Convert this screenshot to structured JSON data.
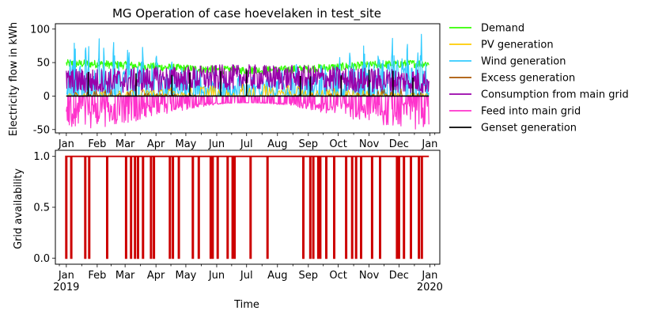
{
  "chart_data": [
    {
      "type": "line",
      "title": "MG Operation of case hoevelaken in test_site",
      "xlabel": "",
      "ylabel": "Electricity flow in kWh",
      "ylim": [
        -55,
        108
      ],
      "yticks": [
        -50,
        0,
        50,
        100
      ],
      "x_range": [
        "2018-12-21",
        "2020-01-11"
      ],
      "x_tick_labels": [
        "Jan",
        "Feb",
        "Mar",
        "Apr",
        "May",
        "Jun",
        "Jul",
        "Aug",
        "Sep",
        "Oct",
        "Nov",
        "Dec",
        "Jan"
      ],
      "legend_placement": "outside-right",
      "series": [
        {
          "name": "Demand",
          "color": "#33ff00",
          "typical_range": [
            30,
            57
          ],
          "peak_months": [
            "Jan",
            "Nov",
            "Dec"
          ]
        },
        {
          "name": "PV generation",
          "color": "#ffcc00",
          "typical_range": [
            0,
            18
          ],
          "peak_months": [
            "May",
            "Jun",
            "Jul"
          ]
        },
        {
          "name": "Wind generation",
          "color": "#33ccff",
          "typical_range": [
            0,
            100
          ],
          "peak_months": [
            "Jan",
            "Feb",
            "Sep",
            "Nov",
            "Dec"
          ]
        },
        {
          "name": "Excess generation",
          "color": "#aa5500",
          "typical_range": [
            0,
            12
          ],
          "peak_months": [
            "Jan",
            "Dec"
          ]
        },
        {
          "name": "Consumption from main grid",
          "color": "#9900aa",
          "typical_range": [
            5,
            50
          ],
          "peak_months": [
            "Mar",
            "Jun",
            "Oct"
          ]
        },
        {
          "name": "Feed into main grid",
          "color": "#ff33cc",
          "typical_range": [
            -50,
            0
          ],
          "peak_months": [
            "Jan",
            "Feb",
            "Mar",
            "Apr",
            "Sep",
            "Nov",
            "Dec"
          ]
        },
        {
          "name": "Genset generation",
          "color": "#000000",
          "typical_range": [
            0,
            40
          ],
          "spikes_at": [
            "2019-01-23",
            "2019-03-12",
            "2019-04-17",
            "2019-05-05",
            "2019-06-05",
            "2019-07-01",
            "2019-08-24",
            "2019-09-03",
            "2019-10-04",
            "2019-11-01",
            "2019-11-25",
            "2019-12-15"
          ]
        }
      ]
    },
    {
      "type": "line",
      "title": "",
      "xlabel": "Time",
      "ylabel": "Grid availability",
      "ylim": [
        -0.06,
        1.06
      ],
      "yticks": [
        0.0,
        0.5,
        1.0
      ],
      "ytick_labels": [
        "0.0",
        "0.5",
        "1.0"
      ],
      "x_range": [
        "2018-12-21",
        "2020-01-11"
      ],
      "x_tick_labels": [
        "Jan",
        "Feb",
        "Mar",
        "Apr",
        "May",
        "Jun",
        "Jul",
        "Aug",
        "Sep",
        "Oct",
        "Nov",
        "Dec",
        "Jan"
      ],
      "x_tick_year_labels": [
        "2019",
        "",
        "",
        "",
        "",
        "",
        "",
        "",
        "",
        "",
        "",
        "",
        "2020"
      ],
      "series": [
        {
          "color": "#cc0000",
          "base_value": 1,
          "outage_value": 0,
          "outages": [
            "2019-01-01",
            "2019-01-06",
            "2019-01-20",
            "2019-01-24",
            "2019-02-11",
            "2019-03-02",
            "2019-03-07",
            "2019-03-11",
            "2019-03-14",
            "2019-03-19",
            "2019-03-27",
            "2019-03-30",
            "2019-04-15",
            "2019-04-18",
            "2019-04-24",
            "2019-05-08",
            "2019-05-14",
            "2019-05-26",
            "2019-05-28",
            "2019-06-02",
            "2019-06-12",
            "2019-06-17",
            "2019-06-19",
            "2019-07-05",
            "2019-07-22",
            "2019-08-27",
            "2019-09-03",
            "2019-09-06",
            "2019-09-11",
            "2019-09-13",
            "2019-09-19",
            "2019-09-27",
            "2019-10-09",
            "2019-10-15",
            "2019-10-19",
            "2019-10-24",
            "2019-11-04",
            "2019-11-12",
            "2019-11-29",
            "2019-12-01",
            "2019-12-06",
            "2019-12-13",
            "2019-12-21",
            "2019-12-24"
          ]
        }
      ]
    }
  ]
}
